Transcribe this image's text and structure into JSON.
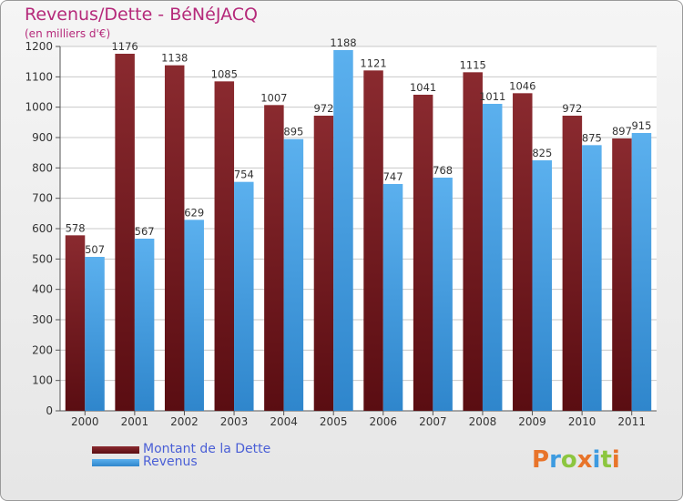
{
  "header": {
    "title": "Revenus/Dette - BéNéJACQ",
    "subtitle": "(en milliers d'€)"
  },
  "logo": {
    "text": "Proxiti",
    "letter_colors": [
      "#e8742a",
      "#3d9be0",
      "#8cc63f",
      "#e8742a",
      "#3d9be0",
      "#8cc63f",
      "#e8742a"
    ]
  },
  "colors": {
    "dette": "#7a1c22",
    "revenus": "#4aa3e6",
    "axis_text": "#333333",
    "grid": "#c8c8c8"
  },
  "chart_data": {
    "type": "bar",
    "title": "Revenus/Dette - BéNéJACQ",
    "ylabel": "(en milliers d'€)",
    "xlabel": "",
    "ylim": [
      0,
      1200
    ],
    "yticks": [
      0,
      100,
      200,
      300,
      400,
      500,
      600,
      700,
      800,
      900,
      1000,
      1100,
      1200
    ],
    "grid": true,
    "legend_position": "bottom-left",
    "categories": [
      "2000",
      "2001",
      "2002",
      "2003",
      "2004",
      "2005",
      "2006",
      "2007",
      "2008",
      "2009",
      "2010",
      "2011"
    ],
    "series": [
      {
        "name": "Montant de la Dette",
        "color": "#7a1c22",
        "values": [
          578,
          1176,
          1138,
          1085,
          1007,
          972,
          1121,
          1041,
          1115,
          1046,
          972,
          897
        ]
      },
      {
        "name": "Revenus",
        "color": "#4aa3e6",
        "values": [
          507,
          567,
          629,
          754,
          895,
          1188,
          747,
          768,
          1011,
          825,
          875,
          915
        ]
      }
    ]
  }
}
